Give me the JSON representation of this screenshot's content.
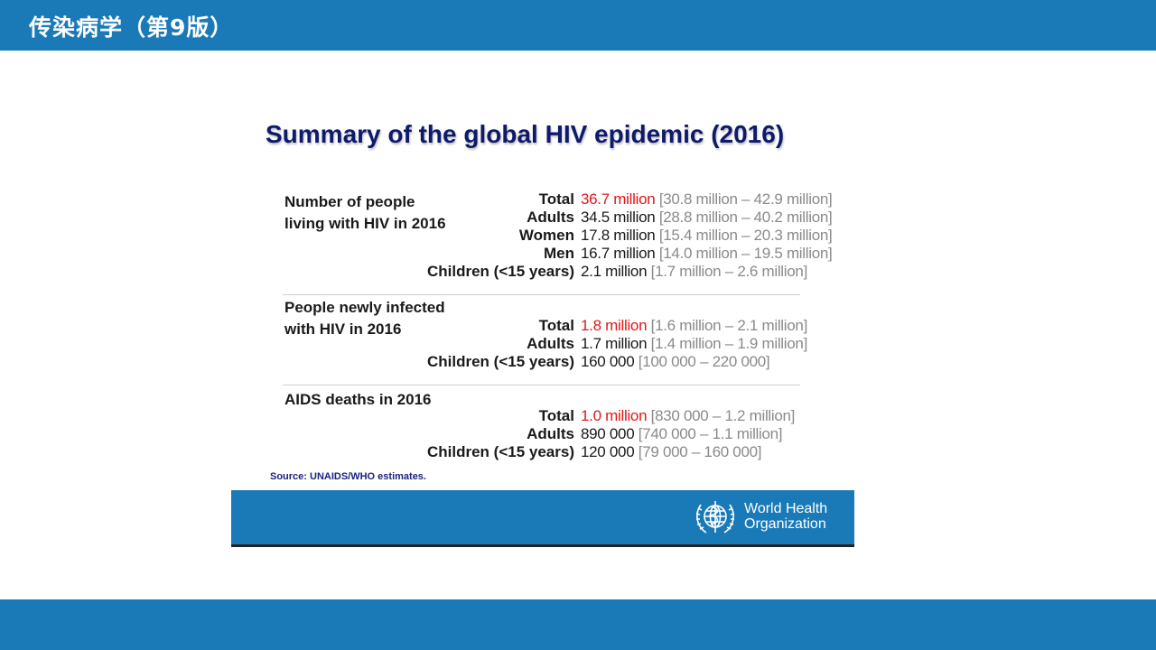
{
  "header": {
    "title": "传染病学（第9版）"
  },
  "slide": {
    "title": "Summary of the global HIV epidemic (2016)",
    "sections": [
      {
        "heading_lines": [
          "Number of people",
          "living with HIV in 2016"
        ],
        "rows": [
          {
            "label": "Total",
            "value": "36.7 million",
            "range": "[30.8 million – 42.9 million]",
            "highlight": true
          },
          {
            "label": "Adults",
            "value": "34.5 million",
            "range": "[28.8 million – 40.2 million]",
            "highlight": false
          },
          {
            "label": "Women",
            "value": "17.8 million",
            "range": "[15.4 million – 20.3 million]",
            "highlight": false
          },
          {
            "label": "Men",
            "value": "16.7 million",
            "range": "[14.0 million – 19.5 million]",
            "highlight": false
          },
          {
            "label": "Children (<15 years)",
            "value": "2.1 million",
            "range": "[1.7 million – 2.6 million]",
            "highlight": false
          }
        ]
      },
      {
        "heading_lines": [
          "People newly infected",
          "with HIV in 2016"
        ],
        "rows": [
          {
            "label": "Total",
            "value": "1.8 million",
            "range": "[1.6 million – 2.1 million]",
            "highlight": true
          },
          {
            "label": "Adults",
            "value": "1.7 million",
            "range": "[1.4 million – 1.9 million]",
            "highlight": false
          },
          {
            "label": "Children (<15 years)",
            "value": "160 000",
            "range": "[100 000 – 220 000]",
            "highlight": false
          }
        ]
      },
      {
        "heading_lines": [
          "AIDS deaths in 2016"
        ],
        "rows": [
          {
            "label": "Total",
            "value": "1.0 million",
            "range": "[830 000 – 1.2 million]",
            "highlight": true
          },
          {
            "label": "Adults",
            "value": "890 000",
            "range": "[740 000 – 1.1 million]",
            "highlight": false
          },
          {
            "label": "Children (<15 years)",
            "value": "120 000",
            "range": "[79 000 – 160 000]",
            "highlight": false
          }
        ]
      }
    ],
    "source": "Source: UNAIDS/WHO estimates.",
    "org": {
      "line1": "World Health",
      "line2": "Organization",
      "logo_icon": "who-emblem-icon"
    }
  },
  "colors": {
    "accent": "#1a7ab8",
    "highlight": "#e01818",
    "range": "#8a8a8a",
    "title": "#0e1a6b"
  }
}
